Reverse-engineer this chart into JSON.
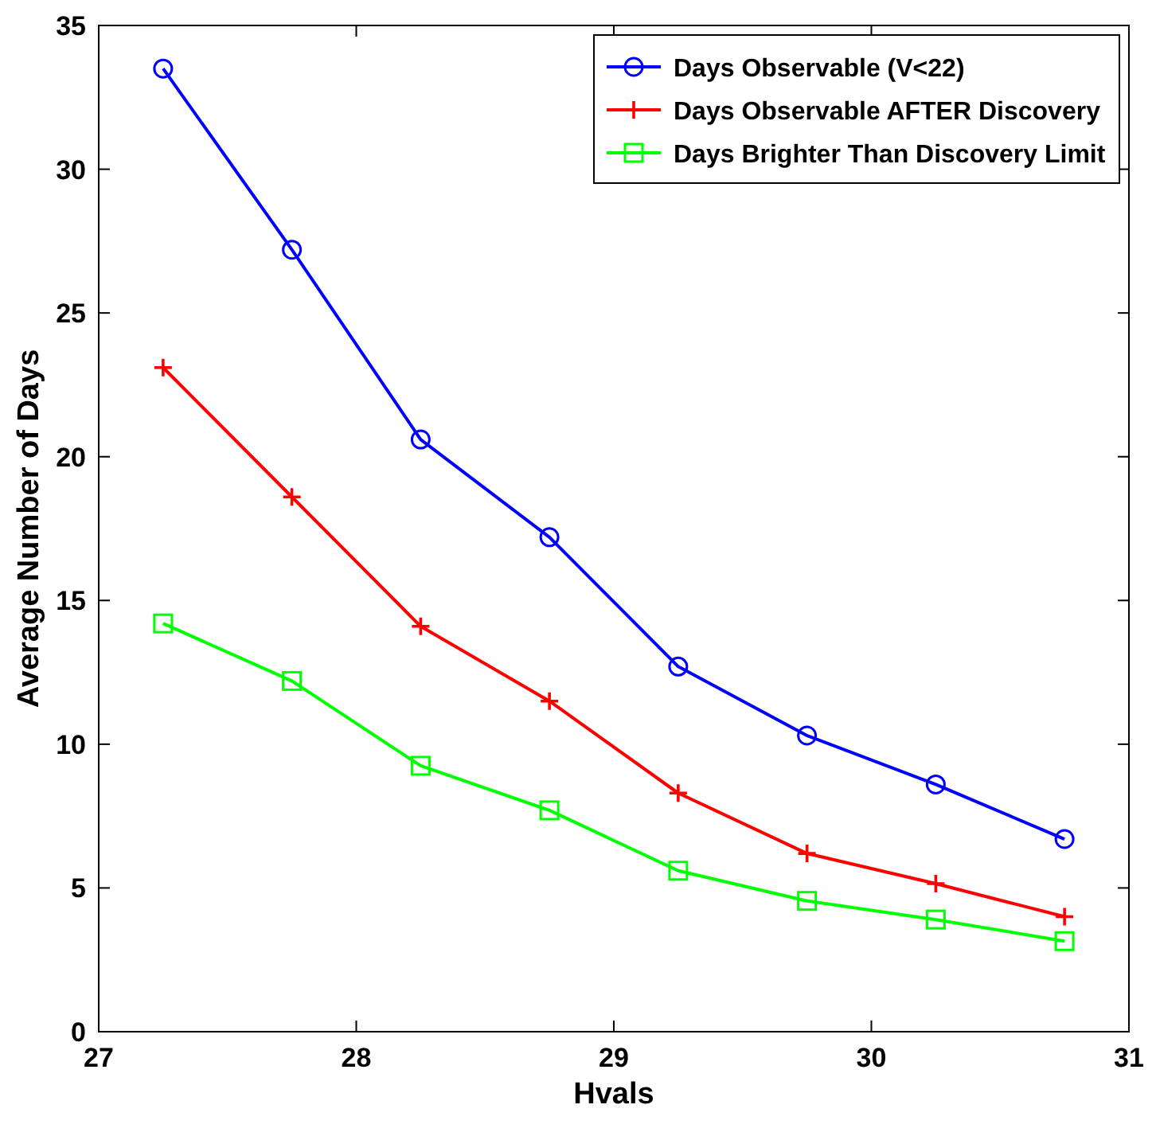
{
  "chart_data": {
    "type": "line",
    "xlabel": "Hvals",
    "ylabel": "Average Number of Days",
    "x": [
      27.25,
      27.75,
      28.25,
      28.75,
      29.25,
      29.75,
      30.25,
      30.75
    ],
    "series": [
      {
        "name": "Days Observable (V<22)",
        "color": "#0000ff",
        "marker": "circle",
        "values": [
          33.5,
          27.2,
          20.6,
          17.2,
          12.7,
          10.3,
          8.6,
          6.7
        ]
      },
      {
        "name": "Days Observable AFTER Discovery",
        "color": "#ff0000",
        "marker": "cross",
        "values": [
          23.1,
          18.6,
          14.1,
          11.5,
          8.3,
          6.2,
          5.15,
          4.0
        ]
      },
      {
        "name": "Days Brighter Than Discovery Limit",
        "color": "#00ff00",
        "marker": "square",
        "values": [
          14.2,
          12.2,
          9.25,
          7.7,
          5.6,
          4.55,
          3.9,
          3.15
        ]
      }
    ],
    "xlim": [
      27,
      31
    ],
    "xticks": [
      27,
      28,
      29,
      30,
      31
    ],
    "ylim": [
      0,
      35
    ],
    "yticks": [
      0,
      5,
      10,
      15,
      20,
      25,
      30,
      35
    ],
    "grid": false,
    "legend": "top right",
    "line_style": "solid"
  }
}
